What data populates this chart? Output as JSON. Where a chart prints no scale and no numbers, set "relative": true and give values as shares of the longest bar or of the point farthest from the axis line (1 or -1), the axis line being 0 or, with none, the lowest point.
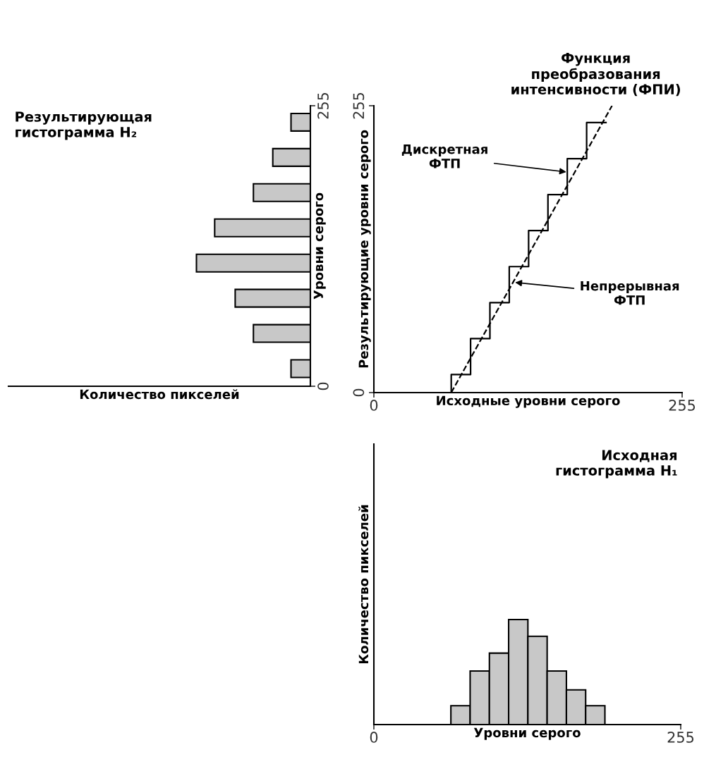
{
  "chart_data": [
    {
      "type": "bar",
      "orientation": "horizontal",
      "relative": true,
      "title": "Результирующая\nгистограмма H₂",
      "xlabel": "Количество пикселей",
      "ylabel": "Уровни серого",
      "x": [
        16,
        48,
        80,
        112,
        144,
        176,
        208,
        240
      ],
      "values": [
        -0.17,
        -0.5,
        -0.66,
        -1,
        -0.84,
        -0.5,
        -0.33,
        -0.17
      ],
      "color": "#c8c8c8",
      "ylim": [
        0,
        255
      ],
      "yticks": [
        0,
        255
      ],
      "tick_labels": "y"
    },
    {
      "type": "line",
      "title": "Функция\nпреобразования\nинтенсивности (ФПИ)",
      "xlabel": "Исходные уровни серого",
      "ylabel": "Результирующие уровни серого",
      "xlim": [
        0,
        255
      ],
      "ylim": [
        0,
        255
      ],
      "xticks": [
        0,
        255
      ],
      "yticks": [
        0,
        255
      ],
      "series": [
        {
          "type": "step",
          "color": "#000000",
          "line_style": "solid",
          "x": [
            64,
            64,
            80,
            96,
            112,
            128,
            144,
            160,
            176,
            192
          ],
          "values": [
            0,
            16,
            48,
            80,
            112,
            144,
            176,
            208,
            240,
            240
          ]
        },
        {
          "type": "line",
          "color": "#000000",
          "line_style": "dashed",
          "x": [
            64,
            197
          ],
          "values": [
            0,
            255
          ]
        }
      ],
      "annotations": [
        {
          "text": "Дискретная\nФТП",
          "x": 160,
          "y": 196
        },
        {
          "text": "Непрерывная\nФТП",
          "x": 116,
          "y": 98
        }
      ]
    },
    {
      "type": "bar",
      "relative": true,
      "title": "Исходная\nгистограмма H₁",
      "xlabel": "Уровни серого",
      "ylabel": "Количество пикселей",
      "x": [
        72,
        88,
        104,
        120,
        136,
        152,
        168,
        184
      ],
      "values": [
        0.18,
        0.51,
        0.68,
        1,
        0.84,
        0.51,
        0.33,
        0.18
      ],
      "color": "#c8c8c8",
      "xlim": [
        0,
        255
      ],
      "xticks": [
        0,
        255
      ],
      "tick_labels": "x"
    }
  ]
}
